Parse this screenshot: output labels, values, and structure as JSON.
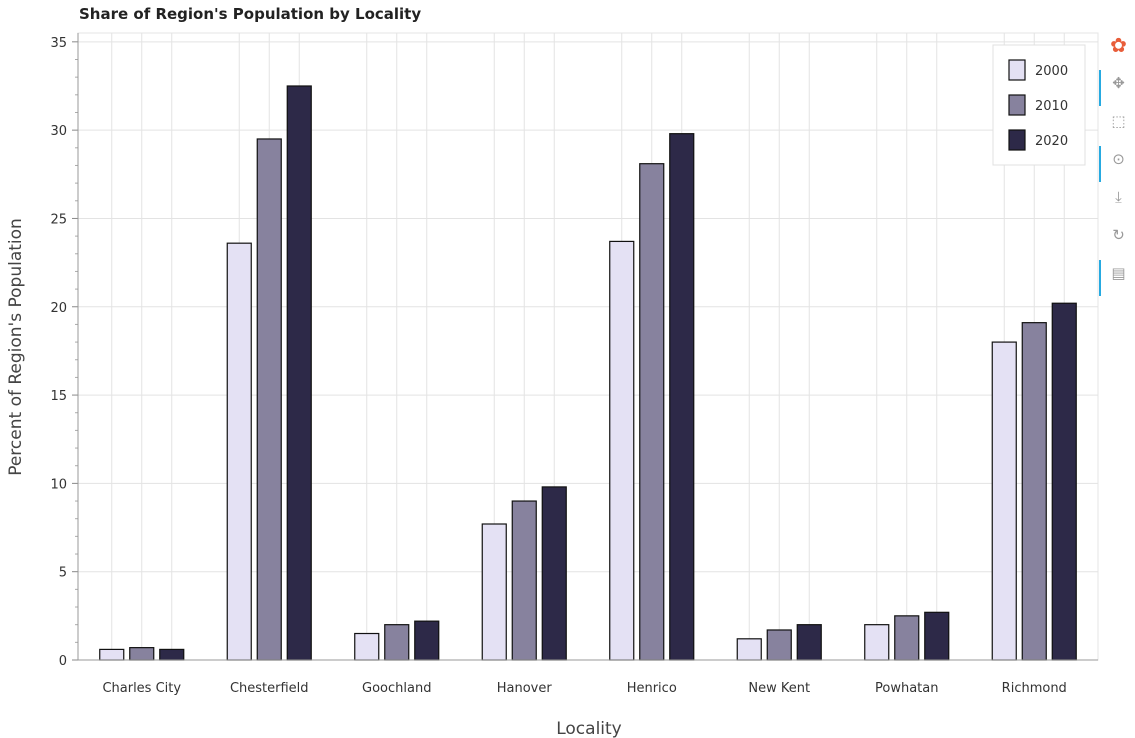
{
  "chart_data": {
    "type": "bar",
    "title": "Share of Region's Population by Locality",
    "xlabel": "Locality",
    "ylabel": "Percent of Region's Population",
    "ylim": [
      0,
      35.5
    ],
    "yticks": [
      0,
      5,
      10,
      15,
      20,
      25,
      30,
      35
    ],
    "grid": true,
    "legend_position": "top-right",
    "categories": [
      "Charles City",
      "Chesterfield",
      "Goochland",
      "Hanover",
      "Henrico",
      "New Kent",
      "Powhatan",
      "Richmond"
    ],
    "series": [
      {
        "name": "2000",
        "color": "#e4e1f4",
        "values": [
          0.6,
          23.6,
          1.5,
          7.7,
          23.7,
          1.2,
          2.0,
          18.0
        ]
      },
      {
        "name": "2010",
        "color": "#87829e",
        "values": [
          0.7,
          29.5,
          2.0,
          9.0,
          28.1,
          1.7,
          2.5,
          19.1
        ]
      },
      {
        "name": "2020",
        "color": "#2d2948",
        "values": [
          0.6,
          32.5,
          2.2,
          9.8,
          29.8,
          2.0,
          2.7,
          20.2
        ]
      }
    ]
  },
  "toolbar": {
    "tools": [
      {
        "name": "bokeh-logo-icon",
        "glyph": "✿",
        "active": false
      },
      {
        "name": "pan-icon",
        "glyph": "✥",
        "active": true
      },
      {
        "name": "box-zoom-icon",
        "glyph": "⬚",
        "active": false
      },
      {
        "name": "wheel-zoom-icon",
        "glyph": "⊙",
        "active": true
      },
      {
        "name": "save-icon",
        "glyph": "⤓",
        "active": false
      },
      {
        "name": "reset-icon",
        "glyph": "↻",
        "active": false
      },
      {
        "name": "hover-icon",
        "glyph": "▤",
        "active": true
      }
    ]
  }
}
